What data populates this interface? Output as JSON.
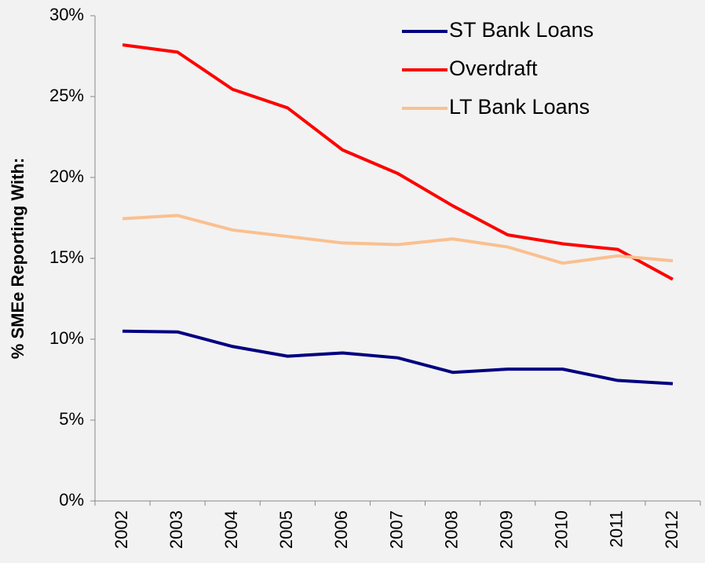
{
  "chart_data": {
    "type": "line",
    "y_label": "% SMEe Reporting With:",
    "categories": [
      "2002",
      "2003",
      "2004",
      "2005",
      "2006",
      "2007",
      "2008",
      "2009",
      "2010",
      "2011",
      "2012"
    ],
    "series": [
      {
        "name": "ST Bank Loans",
        "color": "#000080",
        "values": [
          10.5,
          10.45,
          9.55,
          8.95,
          9.15,
          8.85,
          7.95,
          8.15,
          8.15,
          7.45,
          7.25
        ]
      },
      {
        "name": "Overdraft",
        "color": "#ff0000",
        "values": [
          28.2,
          27.75,
          25.45,
          24.3,
          21.7,
          20.25,
          18.25,
          16.45,
          15.9,
          15.55,
          13.7
        ]
      },
      {
        "name": "LT Bank Loans",
        "color": "#fac090",
        "values": [
          17.45,
          17.65,
          16.75,
          16.35,
          15.95,
          15.85,
          16.2,
          15.7,
          14.7,
          15.15,
          14.85
        ]
      }
    ],
    "ylim": [
      0,
      30
    ],
    "yticks": [
      {
        "value": 0,
        "label": "0%"
      },
      {
        "value": 5,
        "label": "5%"
      },
      {
        "value": 10,
        "label": "10%"
      },
      {
        "value": 15,
        "label": "15%"
      },
      {
        "value": 20,
        "label": "20%"
      },
      {
        "value": 25,
        "label": "25%"
      },
      {
        "value": 30,
        "label": "30%"
      }
    ],
    "legend": "top-right"
  }
}
